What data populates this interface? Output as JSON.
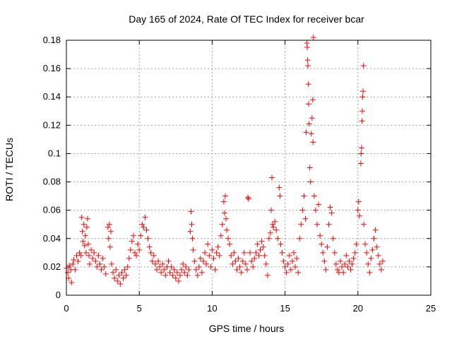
{
  "chart_data": {
    "type": "scatter",
    "title": "Day 165 of 2024, Rate Of TEC Index for receiver bcar",
    "xlabel": "GPS time / hours",
    "ylabel": "ROTI / TECUs",
    "xlim": [
      0,
      25
    ],
    "ylim": [
      0,
      0.18
    ],
    "xticks": [
      0,
      5,
      10,
      15,
      20,
      25
    ],
    "yticks": [
      0,
      0.02,
      0.04,
      0.06,
      0.08,
      0.1,
      0.12,
      0.14,
      0.16,
      0.18
    ],
    "ytick_labels": [
      "0",
      "0.02",
      "0.04",
      "0.06",
      "0.08",
      "0.1",
      "0.12",
      "0.14",
      "0.16",
      "0.18"
    ],
    "grid": true,
    "marker": "+",
    "color": "#ff0000",
    "series": [
      {
        "points": [
          [
            0.0,
            0.019
          ],
          [
            0.1,
            0.016
          ],
          [
            0.15,
            0.012
          ],
          [
            0.2,
            0.021
          ],
          [
            0.3,
            0.018
          ],
          [
            0.35,
            0.009
          ],
          [
            0.45,
            0.022
          ],
          [
            0.5,
            0.025
          ],
          [
            0.6,
            0.018
          ],
          [
            0.7,
            0.028
          ],
          [
            0.8,
            0.024
          ],
          [
            0.9,
            0.03
          ],
          [
            1.0,
            0.028
          ],
          [
            1.05,
            0.055
          ],
          [
            1.1,
            0.045
          ],
          [
            1.15,
            0.038
          ],
          [
            1.2,
            0.05
          ],
          [
            1.25,
            0.035
          ],
          [
            1.3,
            0.042
          ],
          [
            1.35,
            0.03
          ],
          [
            1.4,
            0.048
          ],
          [
            1.45,
            0.054
          ],
          [
            1.5,
            0.036
          ],
          [
            1.55,
            0.028
          ],
          [
            1.6,
            0.022
          ],
          [
            1.7,
            0.032
          ],
          [
            1.8,
            0.026
          ],
          [
            1.9,
            0.03
          ],
          [
            2.0,
            0.024
          ],
          [
            2.1,
            0.02
          ],
          [
            2.2,
            0.028
          ],
          [
            2.3,
            0.022
          ],
          [
            2.4,
            0.018
          ],
          [
            2.5,
            0.026
          ],
          [
            2.6,
            0.02
          ],
          [
            2.7,
            0.015
          ],
          [
            2.85,
            0.048
          ],
          [
            2.9,
            0.04
          ],
          [
            2.95,
            0.05
          ],
          [
            3.0,
            0.034
          ],
          [
            3.05,
            0.045
          ],
          [
            3.1,
            0.022
          ],
          [
            3.2,
            0.016
          ],
          [
            3.3,
            0.012
          ],
          [
            3.4,
            0.018
          ],
          [
            3.5,
            0.01
          ],
          [
            3.6,
            0.014
          ],
          [
            3.7,
            0.008
          ],
          [
            3.8,
            0.016
          ],
          [
            3.9,
            0.012
          ],
          [
            4.0,
            0.018
          ],
          [
            4.1,
            0.014
          ],
          [
            4.2,
            0.02
          ],
          [
            4.3,
            0.026
          ],
          [
            4.4,
            0.032
          ],
          [
            4.5,
            0.038
          ],
          [
            4.6,
            0.042
          ],
          [
            4.7,
            0.03
          ],
          [
            4.8,
            0.028
          ],
          [
            4.9,
            0.036
          ],
          [
            5.0,
            0.032
          ],
          [
            5.1,
            0.042
          ],
          [
            5.2,
            0.05
          ],
          [
            5.3,
            0.048
          ],
          [
            5.4,
            0.055
          ],
          [
            5.5,
            0.046
          ],
          [
            5.6,
            0.04
          ],
          [
            5.7,
            0.034
          ],
          [
            5.8,
            0.03
          ],
          [
            5.9,
            0.024
          ],
          [
            6.0,
            0.028
          ],
          [
            6.1,
            0.022
          ],
          [
            6.2,
            0.018
          ],
          [
            6.3,
            0.024
          ],
          [
            6.4,
            0.02
          ],
          [
            6.5,
            0.016
          ],
          [
            6.6,
            0.022
          ],
          [
            6.7,
            0.018
          ],
          [
            6.8,
            0.014
          ],
          [
            6.9,
            0.02
          ],
          [
            7.0,
            0.024
          ],
          [
            7.1,
            0.016
          ],
          [
            7.2,
            0.02
          ],
          [
            7.3,
            0.014
          ],
          [
            7.4,
            0.018
          ],
          [
            7.5,
            0.012
          ],
          [
            7.6,
            0.016
          ],
          [
            7.7,
            0.01
          ],
          [
            7.8,
            0.014
          ],
          [
            7.9,
            0.018
          ],
          [
            8.0,
            0.022
          ],
          [
            8.1,
            0.016
          ],
          [
            8.2,
            0.02
          ],
          [
            8.3,
            0.014
          ],
          [
            8.4,
            0.018
          ],
          [
            8.5,
            0.045
          ],
          [
            8.55,
            0.059
          ],
          [
            8.6,
            0.05
          ],
          [
            8.65,
            0.04
          ],
          [
            8.7,
            0.032
          ],
          [
            8.8,
            0.024
          ],
          [
            8.9,
            0.018
          ],
          [
            9.0,
            0.014
          ],
          [
            9.1,
            0.02
          ],
          [
            9.2,
            0.026
          ],
          [
            9.3,
            0.016
          ],
          [
            9.4,
            0.024
          ],
          [
            9.5,
            0.03
          ],
          [
            9.6,
            0.022
          ],
          [
            9.7,
            0.036
          ],
          [
            9.8,
            0.028
          ],
          [
            9.9,
            0.02
          ],
          [
            10.0,
            0.032
          ],
          [
            10.1,
            0.026
          ],
          [
            10.2,
            0.018
          ],
          [
            10.3,
            0.03
          ],
          [
            10.4,
            0.034
          ],
          [
            10.5,
            0.028
          ],
          [
            10.6,
            0.042
          ],
          [
            10.7,
            0.05
          ],
          [
            10.8,
            0.066
          ],
          [
            10.85,
            0.058
          ],
          [
            10.9,
            0.07
          ],
          [
            10.95,
            0.054
          ],
          [
            11.0,
            0.046
          ],
          [
            11.1,
            0.04
          ],
          [
            11.2,
            0.036
          ],
          [
            11.3,
            0.028
          ],
          [
            11.4,
            0.022
          ],
          [
            11.5,
            0.03
          ],
          [
            11.6,
            0.024
          ],
          [
            11.7,
            0.018
          ],
          [
            11.8,
            0.026
          ],
          [
            11.9,
            0.02
          ],
          [
            12.0,
            0.016
          ],
          [
            12.1,
            0.024
          ],
          [
            12.2,
            0.03
          ],
          [
            12.3,
            0.022
          ],
          [
            12.4,
            0.018
          ],
          [
            12.45,
            0.069
          ],
          [
            12.5,
            0.068
          ],
          [
            12.6,
            0.03
          ],
          [
            12.7,
            0.024
          ],
          [
            12.8,
            0.02
          ],
          [
            12.9,
            0.026
          ],
          [
            13.0,
            0.03
          ],
          [
            13.1,
            0.036
          ],
          [
            13.2,
            0.028
          ],
          [
            13.3,
            0.032
          ],
          [
            13.4,
            0.038
          ],
          [
            13.5,
            0.034
          ],
          [
            13.6,
            0.028
          ],
          [
            13.7,
            0.022
          ],
          [
            13.8,
            0.014
          ],
          [
            13.9,
            0.04
          ],
          [
            14.0,
            0.044
          ],
          [
            14.05,
            0.06
          ],
          [
            14.1,
            0.083
          ],
          [
            14.15,
            0.05
          ],
          [
            14.2,
            0.048
          ],
          [
            14.3,
            0.052
          ],
          [
            14.4,
            0.046
          ],
          [
            14.5,
            0.04
          ],
          [
            14.6,
            0.076
          ],
          [
            14.65,
            0.07
          ],
          [
            14.7,
            0.036
          ],
          [
            14.8,
            0.03
          ],
          [
            14.9,
            0.024
          ],
          [
            15.0,
            0.02
          ],
          [
            15.1,
            0.016
          ],
          [
            15.2,
            0.022
          ],
          [
            15.3,
            0.028
          ],
          [
            15.4,
            0.018
          ],
          [
            15.5,
            0.024
          ],
          [
            15.6,
            0.03
          ],
          [
            15.7,
            0.02
          ],
          [
            15.8,
            0.026
          ],
          [
            15.9,
            0.016
          ],
          [
            16.0,
            0.04
          ],
          [
            16.1,
            0.05
          ],
          [
            16.2,
            0.06
          ],
          [
            16.3,
            0.07
          ],
          [
            16.4,
            0.054
          ],
          [
            16.45,
            0.115
          ],
          [
            16.5,
            0.178
          ],
          [
            16.52,
            0.175
          ],
          [
            16.55,
            0.166
          ],
          [
            16.57,
            0.162
          ],
          [
            16.6,
            0.149
          ],
          [
            16.62,
            0.135
          ],
          [
            16.65,
            0.121
          ],
          [
            16.7,
            0.09
          ],
          [
            16.75,
            0.08
          ],
          [
            16.8,
            0.114
          ],
          [
            16.85,
            0.125
          ],
          [
            16.9,
            0.138
          ],
          [
            16.92,
            0.108
          ],
          [
            16.95,
            0.182
          ],
          [
            17.0,
            0.07
          ],
          [
            17.1,
            0.06
          ],
          [
            17.2,
            0.05
          ],
          [
            17.3,
            0.064
          ],
          [
            17.4,
            0.042
          ],
          [
            17.5,
            0.036
          ],
          [
            17.6,
            0.03
          ],
          [
            17.7,
            0.024
          ],
          [
            17.8,
            0.018
          ],
          [
            17.9,
            0.034
          ],
          [
            18.0,
            0.05
          ],
          [
            18.1,
            0.062
          ],
          [
            18.2,
            0.058
          ],
          [
            18.3,
            0.04
          ],
          [
            18.4,
            0.03
          ],
          [
            18.5,
            0.022
          ],
          [
            18.6,
            0.018
          ],
          [
            18.7,
            0.016
          ],
          [
            18.8,
            0.024
          ],
          [
            18.9,
            0.02
          ],
          [
            19.0,
            0.016
          ],
          [
            19.1,
            0.022
          ],
          [
            19.2,
            0.028
          ],
          [
            19.3,
            0.02
          ],
          [
            19.4,
            0.024
          ],
          [
            19.5,
            0.018
          ],
          [
            19.6,
            0.022
          ],
          [
            19.7,
            0.026
          ],
          [
            19.8,
            0.03
          ],
          [
            19.9,
            0.036
          ],
          [
            20.0,
            0.06
          ],
          [
            20.05,
            0.066
          ],
          [
            20.1,
            0.056
          ],
          [
            20.2,
            0.093
          ],
          [
            20.22,
            0.1
          ],
          [
            20.25,
            0.104
          ],
          [
            20.28,
            0.123
          ],
          [
            20.3,
            0.13
          ],
          [
            20.32,
            0.14
          ],
          [
            20.35,
            0.144
          ],
          [
            20.38,
            0.162
          ],
          [
            20.4,
            0.05
          ],
          [
            20.5,
            0.036
          ],
          [
            20.6,
            0.03
          ],
          [
            20.7,
            0.022
          ],
          [
            20.8,
            0.016
          ],
          [
            20.9,
            0.026
          ],
          [
            21.0,
            0.032
          ],
          [
            21.1,
            0.04
          ],
          [
            21.2,
            0.046
          ],
          [
            21.3,
            0.034
          ],
          [
            21.4,
            0.028
          ],
          [
            21.5,
            0.022
          ],
          [
            21.6,
            0.018
          ],
          [
            21.7,
            0.024
          ]
        ]
      }
    ]
  }
}
